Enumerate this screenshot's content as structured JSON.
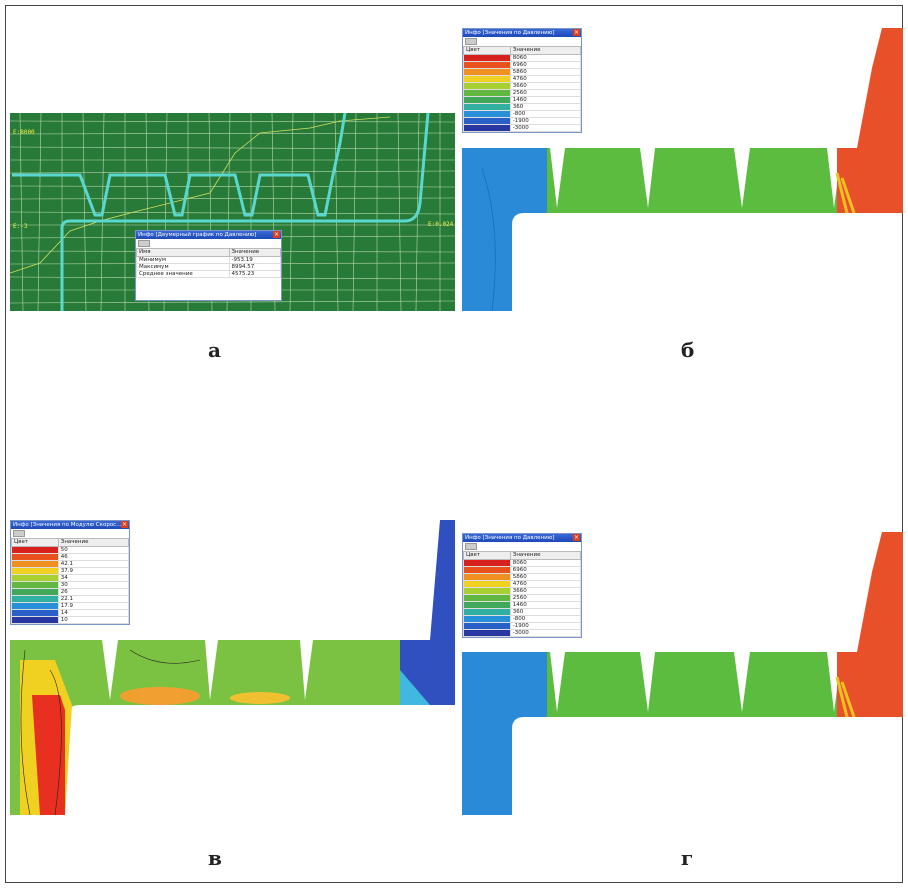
{
  "panels": [
    {
      "label": "а",
      "axis_labels": [
        "E:8000",
        "E:-3",
        "E:0.024"
      ],
      "info": {
        "title": "Инфо [Двумерный график по Давлению]",
        "columns": [
          "Имя",
          "Значение"
        ],
        "rows": [
          [
            "Минимум",
            "-953.19"
          ],
          [
            "Максимум",
            "8994.57"
          ],
          [
            "Среднее значение",
            "4575.23"
          ]
        ]
      }
    },
    {
      "label": "б",
      "info": {
        "title": "Инфо [Значения по Давлению]",
        "columns": [
          "Цвет",
          "Значение"
        ],
        "legend": [
          {
            "color": "#d8201c",
            "value": "8060"
          },
          {
            "color": "#e8501c",
            "value": "6960"
          },
          {
            "color": "#f09020",
            "value": "5860"
          },
          {
            "color": "#f0d020",
            "value": "4760"
          },
          {
            "color": "#a8d030",
            "value": "3660"
          },
          {
            "color": "#60b840",
            "value": "2560"
          },
          {
            "color": "#40a858",
            "value": "1460"
          },
          {
            "color": "#30b0a0",
            "value": "360"
          },
          {
            "color": "#2890d8",
            "value": "-800"
          },
          {
            "color": "#2860c8",
            "value": "-1900"
          },
          {
            "color": "#2838a0",
            "value": "-3000"
          }
        ]
      }
    },
    {
      "label": "в",
      "info": {
        "title": "Инфо [Значения по Модулю Скорос...",
        "columns": [
          "Цвет",
          "Значение"
        ],
        "legend": [
          {
            "color": "#d8201c",
            "value": "50"
          },
          {
            "color": "#e8501c",
            "value": "46"
          },
          {
            "color": "#f09020",
            "value": "42.1"
          },
          {
            "color": "#f0d020",
            "value": "37.9"
          },
          {
            "color": "#a8d030",
            "value": "34"
          },
          {
            "color": "#60b840",
            "value": "30"
          },
          {
            "color": "#40a858",
            "value": "26"
          },
          {
            "color": "#30b0a0",
            "value": "22.1"
          },
          {
            "color": "#2890d8",
            "value": "17.9"
          },
          {
            "color": "#2860c8",
            "value": "14"
          },
          {
            "color": "#2838a0",
            "value": "10"
          }
        ]
      }
    },
    {
      "label": "г",
      "info": {
        "title": "Инфо [Значения по Давлению]",
        "columns": [
          "Цвет",
          "Значение"
        ],
        "legend": [
          {
            "color": "#d8201c",
            "value": "8060"
          },
          {
            "color": "#e8501c",
            "value": "6960"
          },
          {
            "color": "#f09020",
            "value": "5860"
          },
          {
            "color": "#f0d020",
            "value": "4760"
          },
          {
            "color": "#a8d030",
            "value": "3660"
          },
          {
            "color": "#60b840",
            "value": "2560"
          },
          {
            "color": "#40a858",
            "value": "1460"
          },
          {
            "color": "#30b0a0",
            "value": "360"
          },
          {
            "color": "#2890d8",
            "value": "-800"
          },
          {
            "color": "#2860c8",
            "value": "-1900"
          },
          {
            "color": "#2838a0",
            "value": "-3000"
          }
        ]
      }
    }
  ]
}
